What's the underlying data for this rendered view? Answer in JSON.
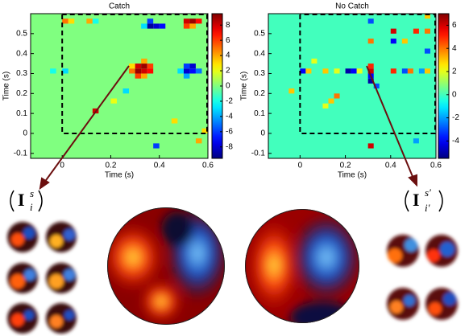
{
  "chart_data": [
    {
      "type": "heatmap",
      "title": "Catch",
      "xlabel": "Time (s)",
      "ylabel": "Time (s)",
      "xlim": [
        -0.13,
        0.6
      ],
      "ylim": [
        -0.125,
        0.6
      ],
      "xticks": [
        0,
        0.2,
        0.4,
        0.6
      ],
      "yticks": [
        -0.1,
        0,
        0.1,
        0.2,
        0.3,
        0.4,
        0.5
      ],
      "clim": [
        -9.5,
        9.5
      ],
      "cticks": [
        -8,
        -6,
        -4,
        -2,
        0,
        2,
        4,
        6,
        8
      ],
      "colormap": "jet",
      "cell_size": 0.025,
      "dashed_origin": [
        0,
        0
      ],
      "cells": [
        [
          0.3,
          0.3,
          9
        ],
        [
          0.325,
          0.3,
          8
        ],
        [
          0.3,
          0.325,
          8
        ],
        [
          0.325,
          0.325,
          9
        ],
        [
          0.35,
          0.325,
          6
        ],
        [
          0.275,
          0.3,
          5
        ],
        [
          0.35,
          0.3,
          7
        ],
        [
          0.3,
          0.275,
          6
        ],
        [
          0.325,
          0.275,
          4
        ],
        [
          0.275,
          0.325,
          3
        ],
        [
          0.325,
          0.35,
          4
        ],
        [
          0.5,
          0.3,
          -8
        ],
        [
          0.525,
          0.3,
          -7
        ],
        [
          0.5,
          0.325,
          -6
        ],
        [
          0.525,
          0.325,
          -8
        ],
        [
          0.55,
          0.3,
          -5
        ],
        [
          0.475,
          0.3,
          -3
        ],
        [
          0.5,
          0.275,
          -4
        ],
        [
          0.35,
          0.525,
          -9
        ],
        [
          0.375,
          0.525,
          -8
        ],
        [
          0.4,
          0.525,
          -7
        ],
        [
          0.35,
          0.55,
          -6
        ],
        [
          0.325,
          0.525,
          -3
        ],
        [
          0.5,
          0.55,
          8
        ],
        [
          0.525,
          0.55,
          9
        ],
        [
          0.55,
          0.55,
          7
        ],
        [
          0.5,
          0.525,
          6
        ],
        [
          0.525,
          0.525,
          4
        ],
        [
          0,
          0.55,
          5
        ],
        [
          0.025,
          0.55,
          3
        ],
        [
          0.1,
          0.55,
          4
        ],
        [
          0.125,
          0.55,
          -2
        ],
        [
          0.125,
          0.1,
          8
        ],
        [
          0,
          0.3,
          -3
        ],
        [
          -0.05,
          0.3,
          -2
        ],
        [
          0.375,
          -0.075,
          -6
        ],
        [
          0.55,
          -0.05,
          4
        ],
        [
          0.575,
          0,
          3
        ],
        [
          0.2,
          0.15,
          2
        ],
        [
          0.45,
          0.05,
          3
        ],
        [
          0.25,
          0.2,
          -3
        ]
      ],
      "annotation": {
        "base": "I",
        "sup": "s",
        "sub": "i"
      }
    },
    {
      "type": "heatmap",
      "title": "No Catch",
      "xlabel": "Time (s)",
      "ylabel": "Time (s)",
      "xlim": [
        -0.14,
        0.6
      ],
      "ylim": [
        -0.125,
        0.6
      ],
      "xticks": [
        0,
        0.2,
        0.4,
        0.6
      ],
      "yticks": [
        -0.1,
        0,
        0.1,
        0.2,
        0.3,
        0.4,
        0.5
      ],
      "clim": [
        -5.5,
        7
      ],
      "cticks": [
        -4,
        -2,
        0,
        2,
        4,
        6
      ],
      "colormap": "jet",
      "cell_size": 0.025,
      "dashed_origin": [
        0,
        0
      ],
      "cells": [
        [
          0.3,
          0.3,
          6
        ],
        [
          0.3,
          0.325,
          5
        ],
        [
          0.3,
          0.275,
          -4
        ],
        [
          0.3,
          0.25,
          -5
        ],
        [
          0.325,
          0.225,
          -3
        ],
        [
          0,
          0.3,
          -4
        ],
        [
          0.025,
          0.3,
          3
        ],
        [
          0.1,
          0.3,
          3
        ],
        [
          0.15,
          0.3,
          2
        ],
        [
          0.2,
          0.3,
          -5
        ],
        [
          0.225,
          0.3,
          -4
        ],
        [
          0.25,
          0.3,
          2
        ],
        [
          0.4,
          0.3,
          5
        ],
        [
          0.45,
          0.3,
          -3
        ],
        [
          0.475,
          0.3,
          4
        ],
        [
          0.525,
          0.3,
          -2
        ],
        [
          0.55,
          0.3,
          3
        ],
        [
          0.5,
          0.5,
          5
        ],
        [
          0.55,
          0.5,
          4
        ],
        [
          0.4,
          0.45,
          -4
        ],
        [
          0.4,
          0.5,
          6
        ],
        [
          0.45,
          0.45,
          3
        ],
        [
          0.55,
          0.4,
          -3
        ],
        [
          0.3,
          0.55,
          -3
        ],
        [
          0.3,
          0.45,
          4
        ],
        [
          0.125,
          0.15,
          3
        ],
        [
          0.15,
          0.175,
          4
        ],
        [
          0.1,
          0.125,
          2
        ],
        [
          0.3,
          -0.075,
          6
        ],
        [
          0.5,
          -0.05,
          -2
        ],
        [
          0.05,
          0.35,
          2
        ],
        [
          -0.05,
          0.2,
          3
        ],
        [
          0.55,
          0.575,
          3
        ]
      ],
      "annotation": {
        "base": "I",
        "sup": "s′",
        "sub": "i′"
      }
    }
  ]
}
